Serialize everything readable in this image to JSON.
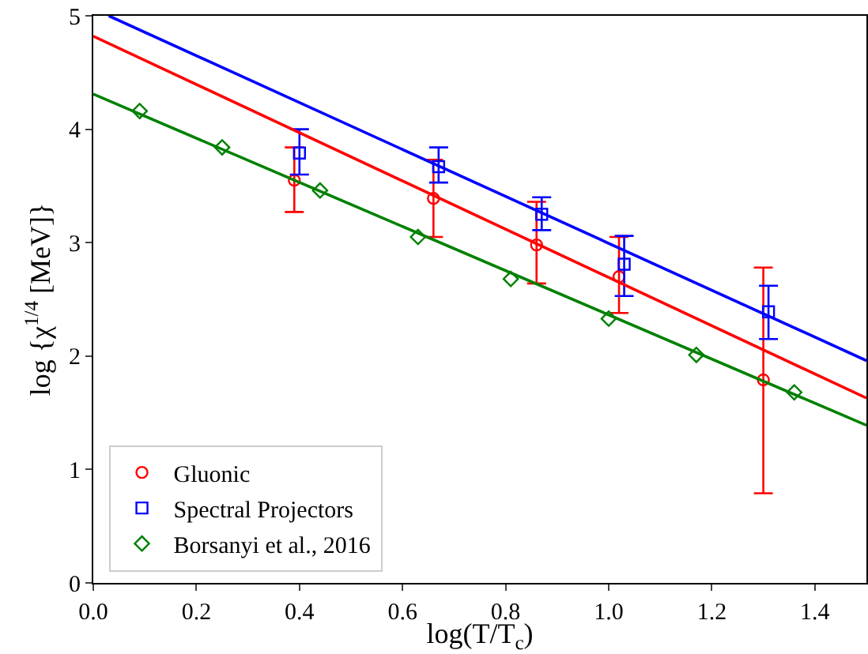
{
  "chart_data": {
    "type": "scatter",
    "xlabel": "log(T/T$_{c}$)",
    "ylabel": "log {χ$^{1/4}$ [MeV]}",
    "xlim": [
      0,
      1.5
    ],
    "ylim": [
      0,
      5
    ],
    "xticks": [
      {
        "value": 0,
        "label": "0.0"
      },
      0.2,
      0.4,
      0.6,
      0.8,
      {
        "value": 1,
        "label": "1.0"
      },
      1.2,
      1.4
    ],
    "yticks": [
      0,
      1,
      2,
      3,
      4,
      5
    ],
    "grid": false,
    "legend": "bottom left",
    "series": [
      {
        "name": "Gluonic",
        "color": "#ff0000",
        "marker": "circle",
        "x": [
          0.39,
          0.66,
          0.86,
          1.02,
          1.3
        ],
        "values": [
          3.55,
          3.39,
          2.98,
          2.7,
          1.79
        ],
        "errors": [
          [
            3.27,
            3.84
          ],
          [
            3.05,
            3.73
          ],
          [
            2.64,
            3.36
          ],
          [
            2.38,
            3.05
          ],
          [
            0.79,
            2.78
          ]
        ]
      },
      {
        "name": "Spectral Projectors",
        "color": "#0000ff",
        "marker": "square",
        "x": [
          0.4,
          0.67,
          0.87,
          1.03,
          1.31
        ],
        "values": [
          3.79,
          3.67,
          3.25,
          2.81,
          2.39
        ],
        "errors": [
          [
            3.6,
            4.0
          ],
          [
            3.53,
            3.84
          ],
          [
            3.11,
            3.4
          ],
          [
            2.53,
            3.06
          ],
          [
            2.15,
            2.62
          ]
        ]
      },
      {
        "name": "Borsanyi et al., 2016",
        "color": "#008000",
        "marker": "diamond",
        "x": [
          0.09,
          0.25,
          0.44,
          0.63,
          0.81,
          1.0,
          1.17,
          1.36
        ],
        "values": [
          4.16,
          3.84,
          3.46,
          3.05,
          2.68,
          2.33,
          2.01,
          1.68
        ]
      },
      {
        "type": "line",
        "color": "#ff0000",
        "x": [
          0,
          1.5
        ],
        "values": [
          4.82,
          1.63
        ]
      },
      {
        "type": "line",
        "color": "#0000ff",
        "x": [
          0.03,
          1.5
        ],
        "values": [
          5.0,
          1.96
        ]
      },
      {
        "type": "line",
        "color": "#008000",
        "x": [
          0,
          1.5
        ],
        "values": [
          4.31,
          1.39
        ]
      }
    ]
  }
}
